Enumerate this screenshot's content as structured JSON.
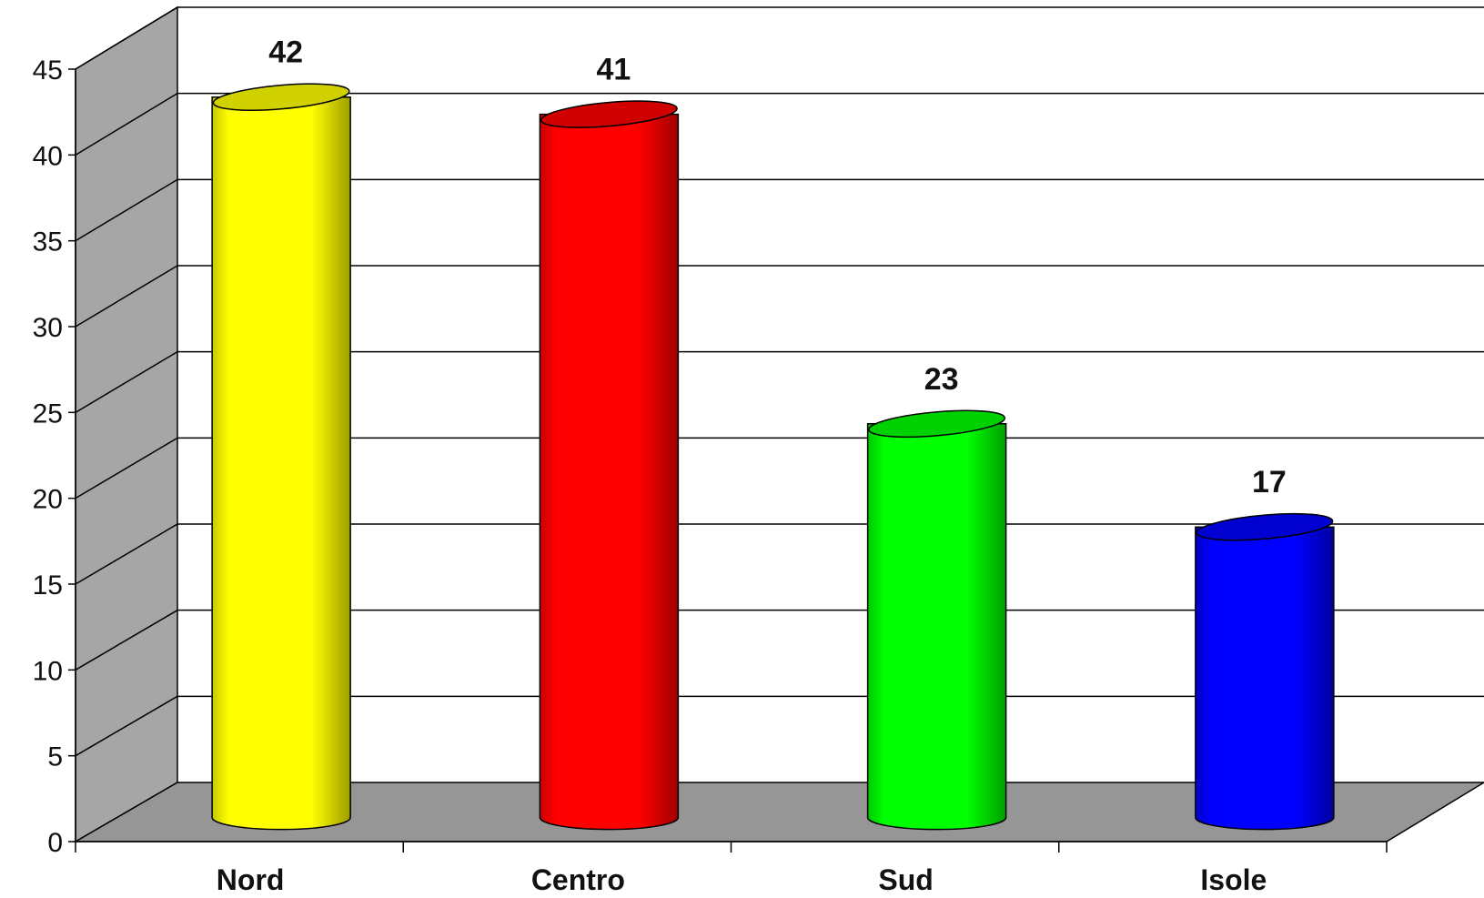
{
  "chart_data": {
    "type": "bar",
    "categories": [
      "Nord",
      "Centro",
      "Sud",
      "Isole"
    ],
    "values": [
      42,
      41,
      23,
      17
    ],
    "data_labels": [
      "42",
      "41",
      "23",
      "17"
    ],
    "title": "",
    "xlabel": "",
    "ylabel": "",
    "ylim": [
      0,
      45
    ],
    "yticks": [
      0,
      5,
      10,
      15,
      20,
      25,
      30,
      35,
      40,
      45
    ],
    "ytick_labels": [
      "0",
      "5",
      "10",
      "15",
      "20",
      "25",
      "30",
      "35",
      "40",
      "45"
    ],
    "grid": true,
    "legend": "none",
    "style": "3d-cylinder",
    "colors": [
      "#ffff00",
      "#ff0000",
      "#00ff00",
      "#0000ff"
    ],
    "wall_color": "#a6a6a6",
    "floor_color": "#969696"
  }
}
